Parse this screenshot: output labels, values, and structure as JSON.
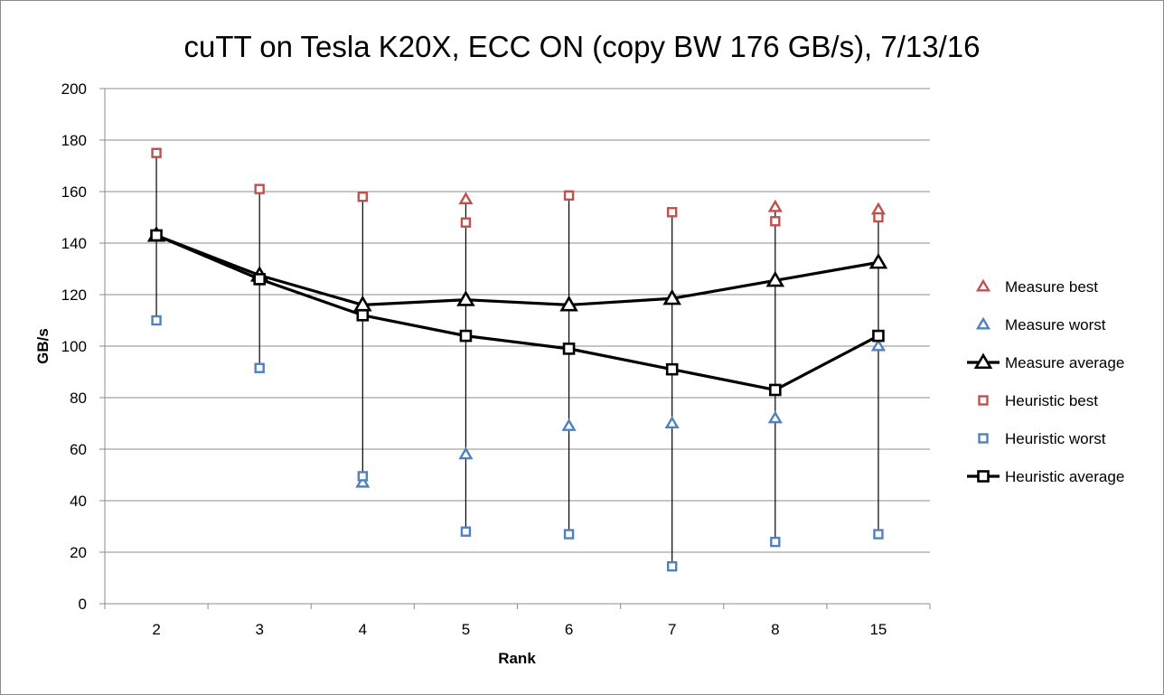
{
  "chart_data": {
    "type": "line",
    "title": "cuTT on Tesla K20X, ECC ON (copy BW 176 GB/s), 7/13/16",
    "xlabel": "Rank",
    "ylabel": "GB/s",
    "categories": [
      "2",
      "3",
      "4",
      "5",
      "6",
      "7",
      "8",
      "15"
    ],
    "ylim": [
      0,
      200
    ],
    "yticks": [
      0,
      20,
      40,
      60,
      80,
      100,
      120,
      140,
      160,
      180,
      200
    ],
    "grid": "horizontal",
    "legend_position": "right",
    "series": [
      {
        "name": "Measure best",
        "marker": "triangle",
        "color": "#c0504d",
        "line": false,
        "values": [
          143,
          128,
          116,
          157,
          116,
          119,
          154,
          153
        ]
      },
      {
        "name": "Measure worst",
        "marker": "triangle",
        "color": "#4f81bd",
        "line": false,
        "values": [
          143,
          127,
          47,
          58,
          69,
          70,
          72,
          100
        ]
      },
      {
        "name": "Measure average",
        "marker": "triangle",
        "color": "#000000",
        "line": true,
        "values": [
          143,
          127.5,
          116,
          118,
          116,
          118.5,
          125.5,
          132.5
        ]
      },
      {
        "name": "Heuristic best",
        "marker": "square",
        "color": "#c0504d",
        "line": false,
        "values": [
          175,
          161,
          158,
          148,
          158.5,
          152,
          148.5,
          150
        ]
      },
      {
        "name": "Heuristic worst",
        "marker": "square",
        "color": "#4f81bd",
        "line": false,
        "values": [
          110,
          91.5,
          49.5,
          28,
          27,
          14.5,
          24,
          27
        ]
      },
      {
        "name": "Heuristic average",
        "marker": "square",
        "color": "#000000",
        "line": true,
        "values": [
          143,
          126,
          112,
          104,
          99,
          91,
          83,
          104
        ]
      }
    ]
  }
}
